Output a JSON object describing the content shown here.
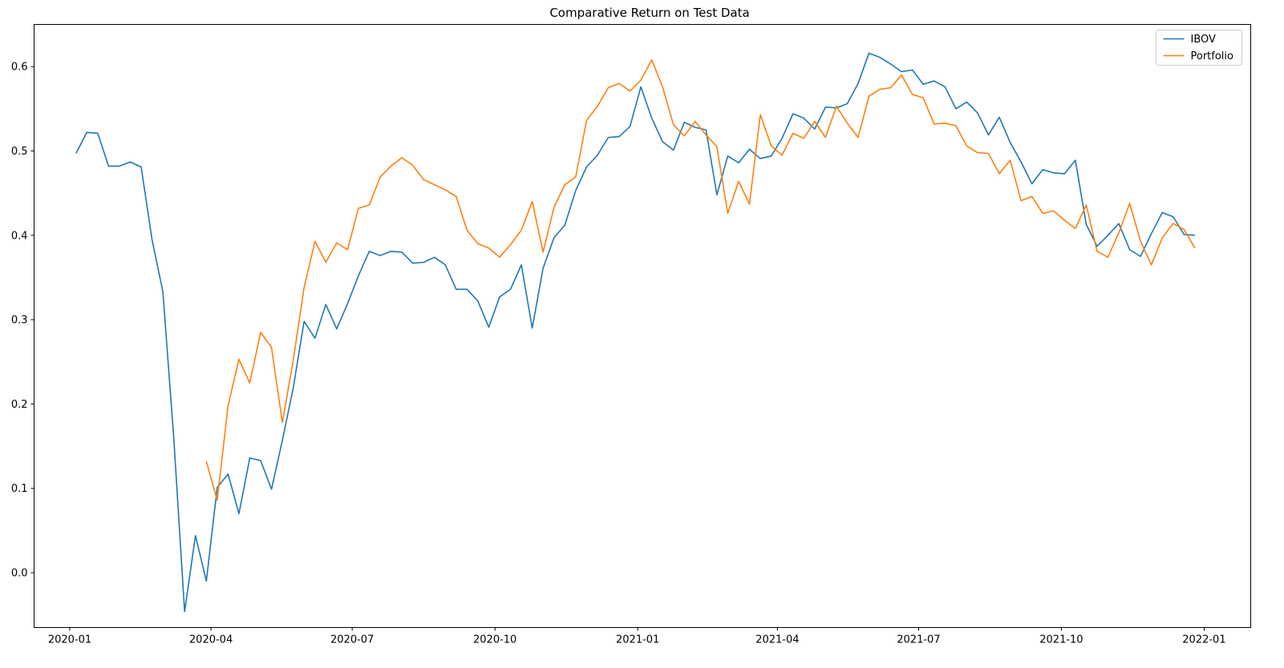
{
  "chart_data": {
    "type": "line",
    "title": "Comparative Return on Test Data",
    "xlabel": "",
    "ylabel": "",
    "x_axis": {
      "type": "date",
      "range": [
        "2019-12-09",
        "2022-01-31"
      ],
      "ticks": [
        "2020-01",
        "2020-04",
        "2020-07",
        "2020-10",
        "2021-01",
        "2021-04",
        "2021-07",
        "2021-10",
        "2022-01"
      ]
    },
    "y_axis": {
      "range": [
        -0.065,
        0.65
      ],
      "ticks": [
        "0.0",
        "0.1",
        "0.2",
        "0.3",
        "0.4",
        "0.5",
        "0.6"
      ]
    },
    "grid": false,
    "legend": {
      "position": "top-right"
    },
    "series": [
      {
        "name": "IBOV",
        "color": "#1f77b4",
        "points": [
          [
            "2020-01-05",
            0.497
          ],
          [
            "2020-01-12",
            0.522
          ],
          [
            "2020-01-19",
            0.521
          ],
          [
            "2020-01-26",
            0.482
          ],
          [
            "2020-02-02",
            0.482
          ],
          [
            "2020-02-09",
            0.487
          ],
          [
            "2020-02-16",
            0.481
          ],
          [
            "2020-02-23",
            0.395
          ],
          [
            "2020-03-01",
            0.333
          ],
          [
            "2020-03-08",
            0.16
          ],
          [
            "2020-03-15",
            -0.046
          ],
          [
            "2020-03-22",
            0.044
          ],
          [
            "2020-03-29",
            -0.01
          ],
          [
            "2020-04-05",
            0.101
          ],
          [
            "2020-04-12",
            0.117
          ],
          [
            "2020-04-19",
            0.07
          ],
          [
            "2020-04-26",
            0.136
          ],
          [
            "2020-05-03",
            0.133
          ],
          [
            "2020-05-10",
            0.099
          ],
          [
            "2020-05-17",
            0.157
          ],
          [
            "2020-05-24",
            0.219
          ],
          [
            "2020-05-31",
            0.298
          ],
          [
            "2020-06-07",
            0.278
          ],
          [
            "2020-06-14",
            0.318
          ],
          [
            "2020-06-21",
            0.289
          ],
          [
            "2020-06-28",
            0.319
          ],
          [
            "2020-07-05",
            0.352
          ],
          [
            "2020-07-12",
            0.381
          ],
          [
            "2020-07-19",
            0.376
          ],
          [
            "2020-07-26",
            0.381
          ],
          [
            "2020-08-02",
            0.38
          ],
          [
            "2020-08-09",
            0.367
          ],
          [
            "2020-08-16",
            0.368
          ],
          [
            "2020-08-23",
            0.374
          ],
          [
            "2020-08-30",
            0.365
          ],
          [
            "2020-09-06",
            0.336
          ],
          [
            "2020-09-13",
            0.336
          ],
          [
            "2020-09-20",
            0.322
          ],
          [
            "2020-09-27",
            0.291
          ],
          [
            "2020-10-04",
            0.327
          ],
          [
            "2020-10-11",
            0.336
          ],
          [
            "2020-10-18",
            0.365
          ],
          [
            "2020-10-25",
            0.29
          ],
          [
            "2020-11-01",
            0.361
          ],
          [
            "2020-11-08",
            0.397
          ],
          [
            "2020-11-15",
            0.412
          ],
          [
            "2020-11-22",
            0.453
          ],
          [
            "2020-11-29",
            0.481
          ],
          [
            "2020-12-06",
            0.495
          ],
          [
            "2020-12-13",
            0.516
          ],
          [
            "2020-12-20",
            0.517
          ],
          [
            "2020-12-27",
            0.529
          ],
          [
            "2021-01-03",
            0.576
          ],
          [
            "2021-01-10",
            0.539
          ],
          [
            "2021-01-17",
            0.511
          ],
          [
            "2021-01-24",
            0.501
          ],
          [
            "2021-01-31",
            0.534
          ],
          [
            "2021-02-07",
            0.528
          ],
          [
            "2021-02-14",
            0.525
          ],
          [
            "2021-02-21",
            0.448
          ],
          [
            "2021-02-28",
            0.494
          ],
          [
            "2021-03-07",
            0.486
          ],
          [
            "2021-03-14",
            0.502
          ],
          [
            "2021-03-21",
            0.491
          ],
          [
            "2021-03-28",
            0.494
          ],
          [
            "2021-04-04",
            0.515
          ],
          [
            "2021-04-11",
            0.544
          ],
          [
            "2021-04-18",
            0.539
          ],
          [
            "2021-04-25",
            0.526
          ],
          [
            "2021-05-02",
            0.552
          ],
          [
            "2021-05-09",
            0.551
          ],
          [
            "2021-05-16",
            0.556
          ],
          [
            "2021-05-23",
            0.58
          ],
          [
            "2021-05-30",
            0.616
          ],
          [
            "2021-06-06",
            0.611
          ],
          [
            "2021-06-13",
            0.603
          ],
          [
            "2021-06-20",
            0.594
          ],
          [
            "2021-06-27",
            0.596
          ],
          [
            "2021-07-04",
            0.579
          ],
          [
            "2021-07-11",
            0.583
          ],
          [
            "2021-07-18",
            0.576
          ],
          [
            "2021-07-25",
            0.55
          ],
          [
            "2021-08-01",
            0.558
          ],
          [
            "2021-08-08",
            0.545
          ],
          [
            "2021-08-15",
            0.519
          ],
          [
            "2021-08-22",
            0.54
          ],
          [
            "2021-08-29",
            0.51
          ],
          [
            "2021-09-05",
            0.487
          ],
          [
            "2021-09-12",
            0.461
          ],
          [
            "2021-09-19",
            0.478
          ],
          [
            "2021-09-26",
            0.474
          ],
          [
            "2021-10-03",
            0.473
          ],
          [
            "2021-10-10",
            0.489
          ],
          [
            "2021-10-17",
            0.413
          ],
          [
            "2021-10-24",
            0.387
          ],
          [
            "2021-10-31",
            0.4
          ],
          [
            "2021-11-07",
            0.414
          ],
          [
            "2021-11-14",
            0.383
          ],
          [
            "2021-11-21",
            0.375
          ],
          [
            "2021-11-28",
            0.402
          ],
          [
            "2021-12-05",
            0.427
          ],
          [
            "2021-12-12",
            0.422
          ],
          [
            "2021-12-19",
            0.401
          ],
          [
            "2021-12-26",
            0.4
          ]
        ]
      },
      {
        "name": "Portfolio",
        "color": "#ff7f0e",
        "points": [
          [
            "2020-03-29",
            0.132
          ],
          [
            "2020-04-05",
            0.086
          ],
          [
            "2020-04-12",
            0.198
          ],
          [
            "2020-04-19",
            0.253
          ],
          [
            "2020-04-26",
            0.225
          ],
          [
            "2020-05-03",
            0.285
          ],
          [
            "2020-05-10",
            0.267
          ],
          [
            "2020-05-17",
            0.178
          ],
          [
            "2020-05-24",
            0.252
          ],
          [
            "2020-05-31",
            0.338
          ],
          [
            "2020-06-07",
            0.393
          ],
          [
            "2020-06-14",
            0.368
          ],
          [
            "2020-06-21",
            0.391
          ],
          [
            "2020-06-28",
            0.383
          ],
          [
            "2020-07-05",
            0.432
          ],
          [
            "2020-07-12",
            0.436
          ],
          [
            "2020-07-19",
            0.469
          ],
          [
            "2020-07-26",
            0.482
          ],
          [
            "2020-08-02",
            0.492
          ],
          [
            "2020-08-09",
            0.483
          ],
          [
            "2020-08-16",
            0.466
          ],
          [
            "2020-08-23",
            0.46
          ],
          [
            "2020-08-30",
            0.454
          ],
          [
            "2020-09-06",
            0.446
          ],
          [
            "2020-09-13",
            0.406
          ],
          [
            "2020-09-20",
            0.39
          ],
          [
            "2020-09-27",
            0.385
          ],
          [
            "2020-10-04",
            0.374
          ],
          [
            "2020-10-11",
            0.389
          ],
          [
            "2020-10-18",
            0.406
          ],
          [
            "2020-10-25",
            0.44
          ],
          [
            "2020-11-01",
            0.38
          ],
          [
            "2020-11-08",
            0.433
          ],
          [
            "2020-11-15",
            0.46
          ],
          [
            "2020-11-22",
            0.469
          ],
          [
            "2020-11-29",
            0.536
          ],
          [
            "2020-12-06",
            0.553
          ],
          [
            "2020-12-13",
            0.575
          ],
          [
            "2020-12-20",
            0.58
          ],
          [
            "2020-12-27",
            0.571
          ],
          [
            "2021-01-03",
            0.584
          ],
          [
            "2021-01-10",
            0.608
          ],
          [
            "2021-01-17",
            0.576
          ],
          [
            "2021-01-24",
            0.531
          ],
          [
            "2021-01-31",
            0.518
          ],
          [
            "2021-02-07",
            0.535
          ],
          [
            "2021-02-14",
            0.519
          ],
          [
            "2021-02-21",
            0.505
          ],
          [
            "2021-02-28",
            0.426
          ],
          [
            "2021-03-07",
            0.464
          ],
          [
            "2021-03-14",
            0.437
          ],
          [
            "2021-03-21",
            0.543
          ],
          [
            "2021-03-28",
            0.506
          ],
          [
            "2021-04-04",
            0.495
          ],
          [
            "2021-04-11",
            0.521
          ],
          [
            "2021-04-18",
            0.515
          ],
          [
            "2021-04-25",
            0.535
          ],
          [
            "2021-05-02",
            0.516
          ],
          [
            "2021-05-09",
            0.553
          ],
          [
            "2021-05-16",
            0.533
          ],
          [
            "2021-05-23",
            0.516
          ],
          [
            "2021-05-30",
            0.565
          ],
          [
            "2021-06-06",
            0.573
          ],
          [
            "2021-06-13",
            0.575
          ],
          [
            "2021-06-20",
            0.59
          ],
          [
            "2021-06-27",
            0.567
          ],
          [
            "2021-07-04",
            0.563
          ],
          [
            "2021-07-11",
            0.532
          ],
          [
            "2021-07-18",
            0.533
          ],
          [
            "2021-07-25",
            0.53
          ],
          [
            "2021-08-01",
            0.506
          ],
          [
            "2021-08-08",
            0.498
          ],
          [
            "2021-08-15",
            0.497
          ],
          [
            "2021-08-22",
            0.473
          ],
          [
            "2021-08-29",
            0.489
          ],
          [
            "2021-09-05",
            0.441
          ],
          [
            "2021-09-12",
            0.446
          ],
          [
            "2021-09-19",
            0.426
          ],
          [
            "2021-09-26",
            0.429
          ],
          [
            "2021-10-03",
            0.418
          ],
          [
            "2021-10-10",
            0.408
          ],
          [
            "2021-10-17",
            0.436
          ],
          [
            "2021-10-24",
            0.381
          ],
          [
            "2021-10-31",
            0.374
          ],
          [
            "2021-11-07",
            0.403
          ],
          [
            "2021-11-14",
            0.438
          ],
          [
            "2021-11-21",
            0.393
          ],
          [
            "2021-11-28",
            0.365
          ],
          [
            "2021-12-05",
            0.397
          ],
          [
            "2021-12-12",
            0.414
          ],
          [
            "2021-12-19",
            0.407
          ],
          [
            "2021-12-26",
            0.385
          ]
        ]
      }
    ]
  }
}
